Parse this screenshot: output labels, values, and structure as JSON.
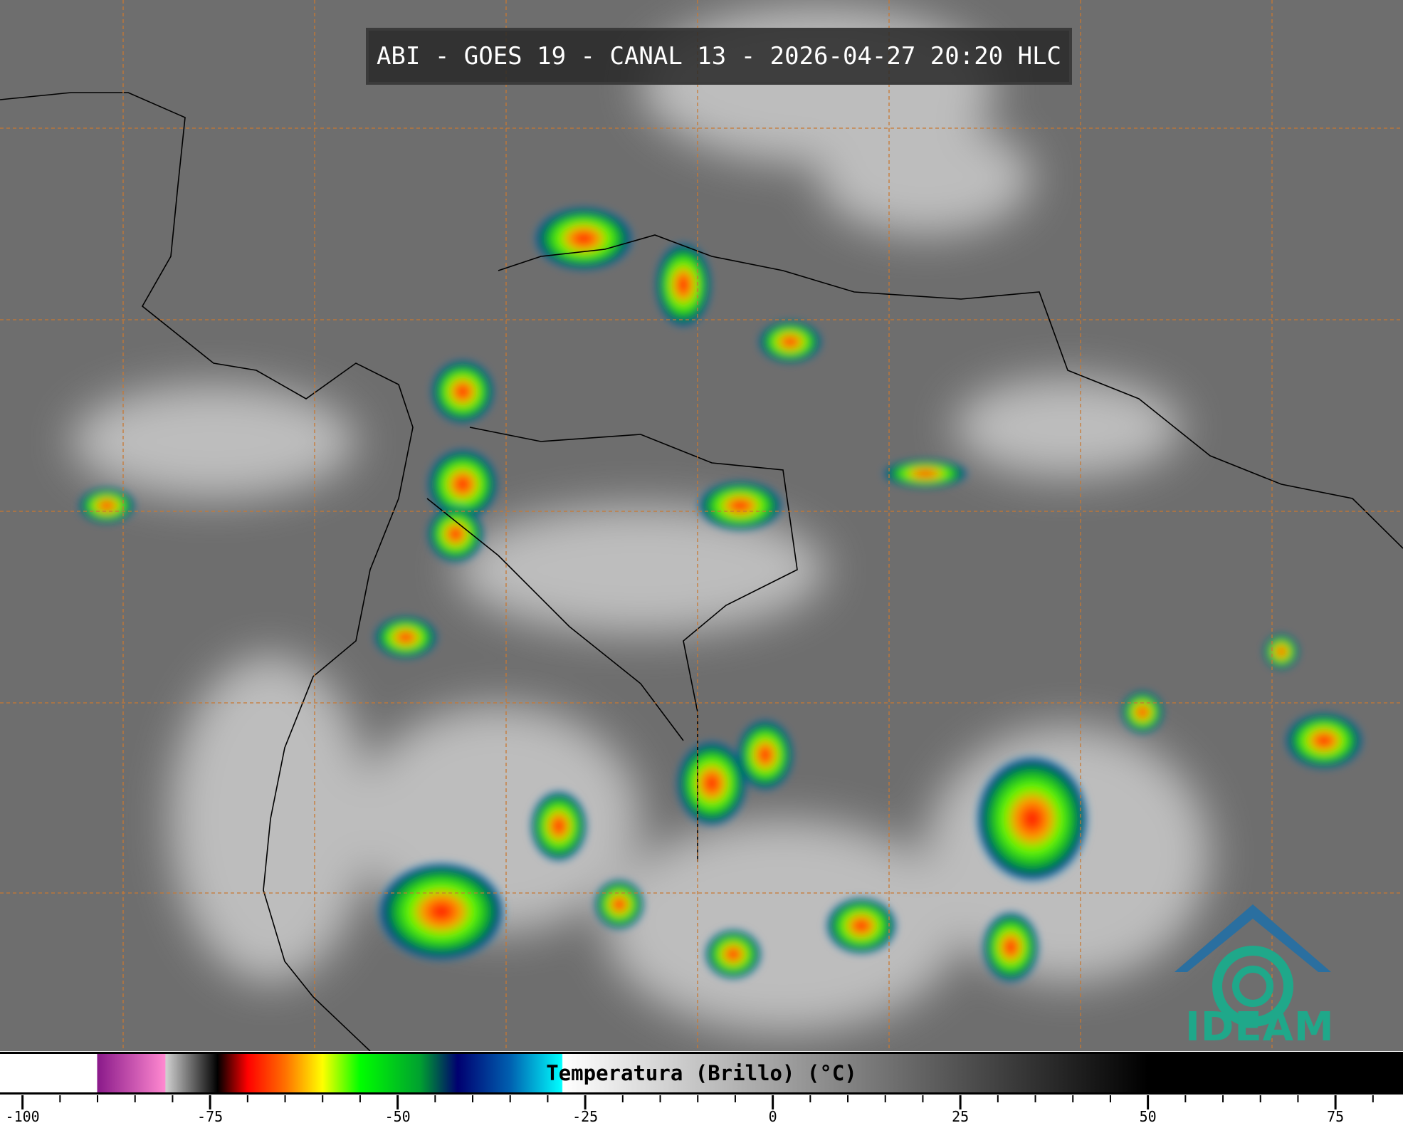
{
  "title": "ABI - GOES 19 - CANAL 13 - 2026-04-27 20:20 HLC",
  "logo": {
    "text": "IDEAM",
    "color": "#1fa88a"
  },
  "colorbar": {
    "label": "Temperatura (Brillo) (°C)",
    "range": [
      -103,
      84
    ],
    "major_ticks": [
      -100,
      -75,
      -50,
      -25,
      0,
      25,
      50,
      75
    ],
    "minor_step": 5,
    "stops": [
      {
        "t": -103,
        "c": "#ffffff"
      },
      {
        "t": -90.1,
        "c": "#ffffff"
      },
      {
        "t": -90,
        "c": "#8a1a8a"
      },
      {
        "t": -81,
        "c": "#ff88d0"
      },
      {
        "t": -80.9,
        "c": "#d0d0d0"
      },
      {
        "t": -75,
        "c": "#202020"
      },
      {
        "t": -74,
        "c": "#000000"
      },
      {
        "t": -70,
        "c": "#ff0000"
      },
      {
        "t": -65,
        "c": "#ff7000"
      },
      {
        "t": -60,
        "c": "#ffff00"
      },
      {
        "t": -55,
        "c": "#00ff00"
      },
      {
        "t": -47,
        "c": "#00a030"
      },
      {
        "t": -42,
        "c": "#000070"
      },
      {
        "t": -35,
        "c": "#0060b0"
      },
      {
        "t": -28.1,
        "c": "#00ffff"
      },
      {
        "t": -28,
        "c": "#ffffff"
      },
      {
        "t": 50,
        "c": "#000000"
      },
      {
        "t": 84,
        "c": "#000000"
      }
    ]
  }
}
